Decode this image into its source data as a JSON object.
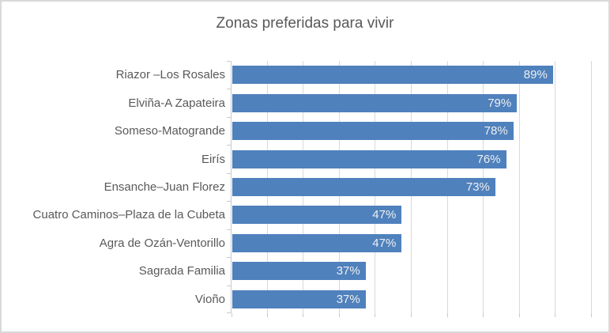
{
  "chart_data": {
    "type": "bar",
    "orientation": "horizontal",
    "title": "Zonas preferidas para vivir",
    "categories": [
      "Riazor –Los Rosales",
      "Elviña-A Zapateira",
      "Someso-Matogrande",
      "Eirís",
      "Ensanche–Juan Florez",
      "Cuatro Caminos–Plaza de la Cubeta",
      "Agra de Ozán-Ventorillo",
      "Sagrada Familia",
      "Vioño"
    ],
    "values": [
      89,
      79,
      78,
      76,
      73,
      47,
      47,
      37,
      37
    ],
    "value_labels": [
      "89%",
      "79%",
      "78%",
      "76%",
      "73%",
      "47%",
      "47%",
      "37%",
      "37%"
    ],
    "value_suffix": "%",
    "xlim": [
      0,
      100
    ],
    "gridline_interval": 10,
    "grid": true,
    "data_label_position": "inside-end",
    "value_axis_labels": "none",
    "legend": "none"
  },
  "colors": {
    "bar": "#4F81BD",
    "title_text": "#595959",
    "category_text": "#595959",
    "data_label_text": "#EFEFEF",
    "gridline": "#D9D9D9",
    "axis": "#C9C9C9",
    "border": "#D9D9D9",
    "bg": "#FFFFFF"
  }
}
